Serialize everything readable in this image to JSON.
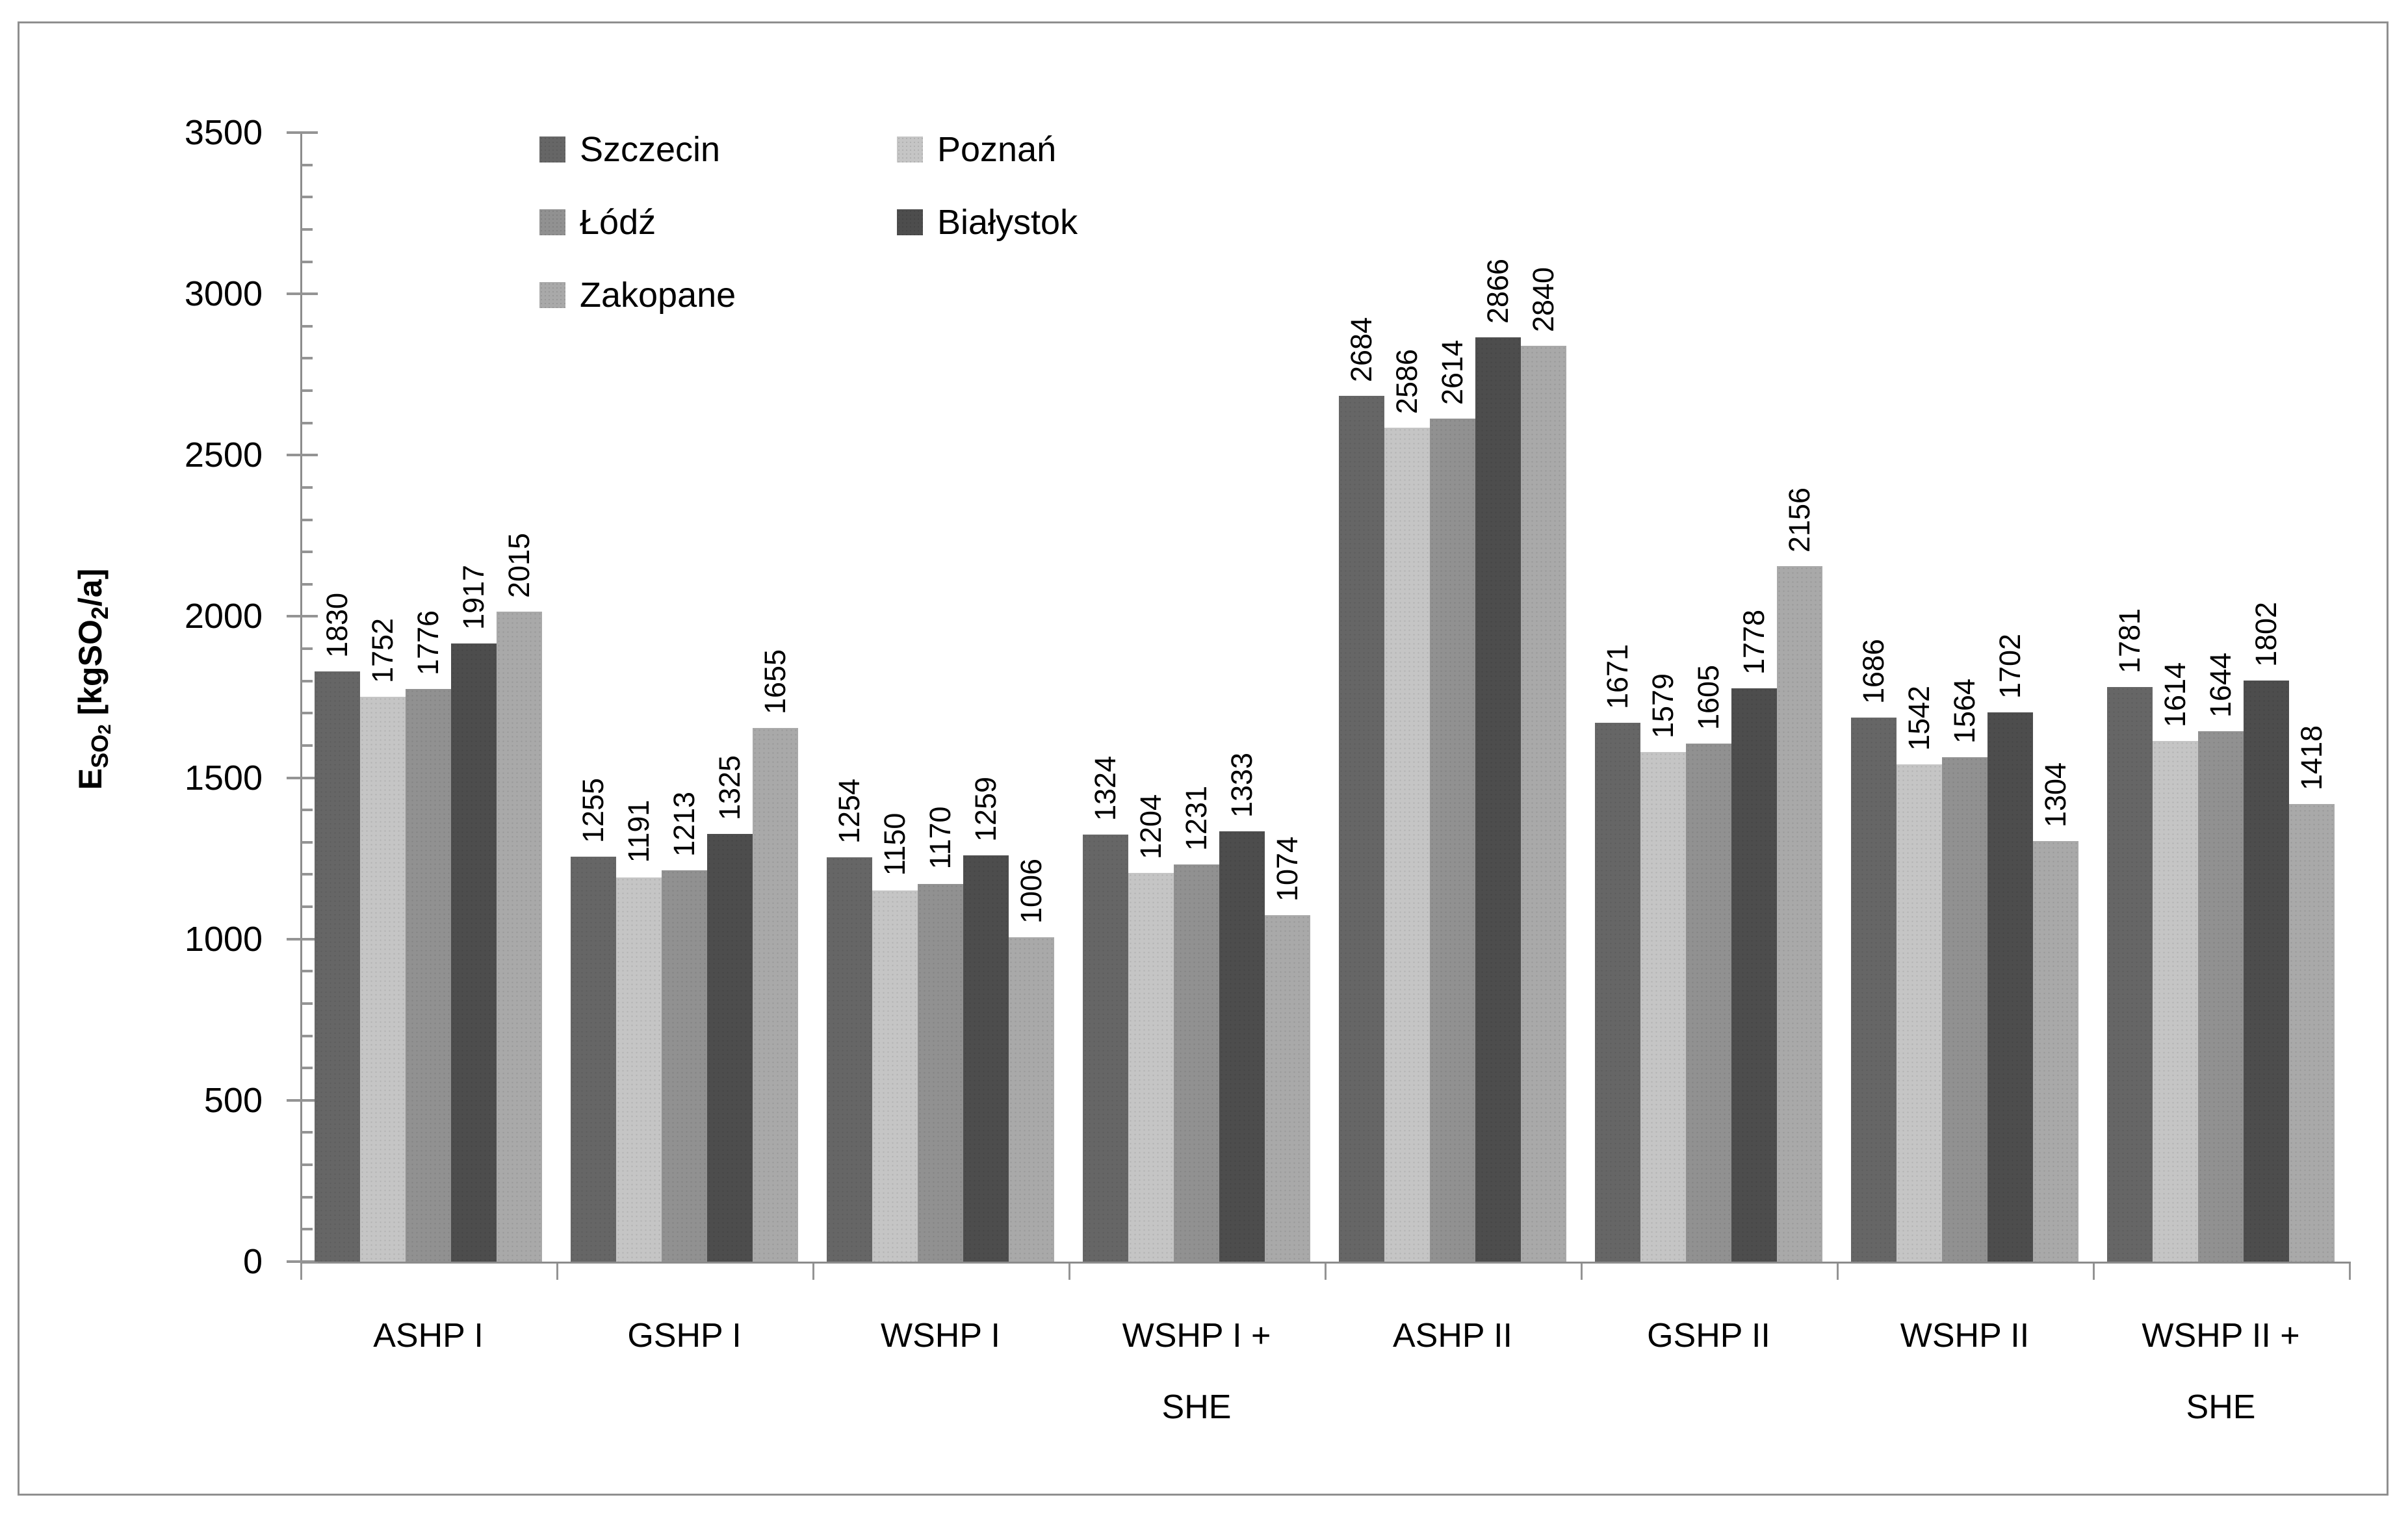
{
  "chart_data": {
    "type": "bar",
    "title": "",
    "ylabel_plain": "ESO2 [kgSO2/a]",
    "ylabel_parts": [
      {
        "text": "E",
        "style": "main"
      },
      {
        "text": "SO",
        "style": "sub"
      },
      {
        "text": "2",
        "style": "subsub"
      },
      {
        "text": " [kgSO",
        "style": "main"
      },
      {
        "text": "2",
        "style": "sub"
      },
      {
        "text": "/a]",
        "style": "main"
      }
    ],
    "categories": [
      "ASHP I",
      "GSHP I",
      "WSHP I",
      "WSHP I + SHE",
      "ASHP II",
      "GSHP II",
      "WSHP II",
      "WSHP II + SHE"
    ],
    "category_label_lines": [
      [
        "ASHP I"
      ],
      [
        "GSHP I"
      ],
      [
        "WSHP I"
      ],
      [
        "WSHP I +",
        "SHE"
      ],
      [
        "ASHP II"
      ],
      [
        "GSHP II"
      ],
      [
        "WSHP II"
      ],
      [
        "WSHP II +",
        "SHE"
      ]
    ],
    "series": [
      {
        "name": "Szczecin",
        "color": "#666666",
        "values": [
          1830,
          1255,
          1254,
          1324,
          2684,
          1671,
          1686,
          1781
        ]
      },
      {
        "name": "Poznań",
        "color": "#c5c5c5",
        "values": [
          1752,
          1191,
          1150,
          1204,
          2586,
          1579,
          1542,
          1614
        ]
      },
      {
        "name": "Łódź",
        "color": "#919191",
        "values": [
          1776,
          1213,
          1170,
          1231,
          2614,
          1605,
          1564,
          1644
        ]
      },
      {
        "name": "Białystok",
        "color": "#4d4d4d",
        "values": [
          1917,
          1325,
          1259,
          1333,
          2866,
          1778,
          1702,
          1802
        ]
      },
      {
        "name": "Zakopane",
        "color": "#a9a9a9",
        "values": [
          2015,
          1655,
          1006,
          1074,
          2840,
          2156,
          1304,
          1418
        ]
      }
    ],
    "y_axis": {
      "min": 0,
      "max": 3500,
      "major_step": 500,
      "minor_step": 100,
      "tick_labels": [
        "0",
        "500",
        "1000",
        "1500",
        "2000",
        "2500",
        "3000",
        "3500"
      ]
    },
    "legend": {
      "columns": 2,
      "entries": [
        "Szczecin",
        "Poznań",
        "Łódź",
        "Białystok",
        "Zakopane"
      ]
    },
    "legend_position": "top-left-inside",
    "grid": "off",
    "colors": {
      "axis": "#8c8c8c",
      "tick": "#949494",
      "text": "#000000",
      "frame_border": "#8f8f8f",
      "background": "#ffffff"
    }
  }
}
